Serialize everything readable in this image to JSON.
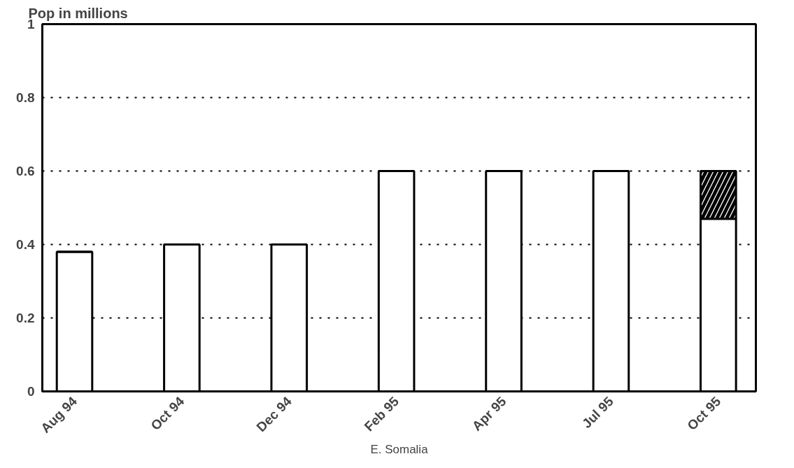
{
  "chart_data": {
    "type": "bar",
    "ylabel": "Pop in millions",
    "xlabel": "E. Somalia",
    "categories": [
      "Aug 94",
      "Oct 94",
      "Dec 94",
      "Feb 95",
      "Apr 95",
      "Jul 95",
      "Oct 95"
    ],
    "stacked": true,
    "series": [
      {
        "color": "#ffffff",
        "values": [
          0.38,
          0.4,
          0.4,
          0.6,
          0.6,
          0.6,
          0.47
        ]
      },
      {
        "color": "#000000",
        "values": [
          0,
          0,
          0,
          0,
          0,
          0,
          0.13
        ]
      }
    ],
    "ylim": [
      0,
      1
    ],
    "yticks": [
      0,
      0.2,
      0.4,
      0.6,
      0.8,
      1
    ],
    "grid": "y"
  }
}
